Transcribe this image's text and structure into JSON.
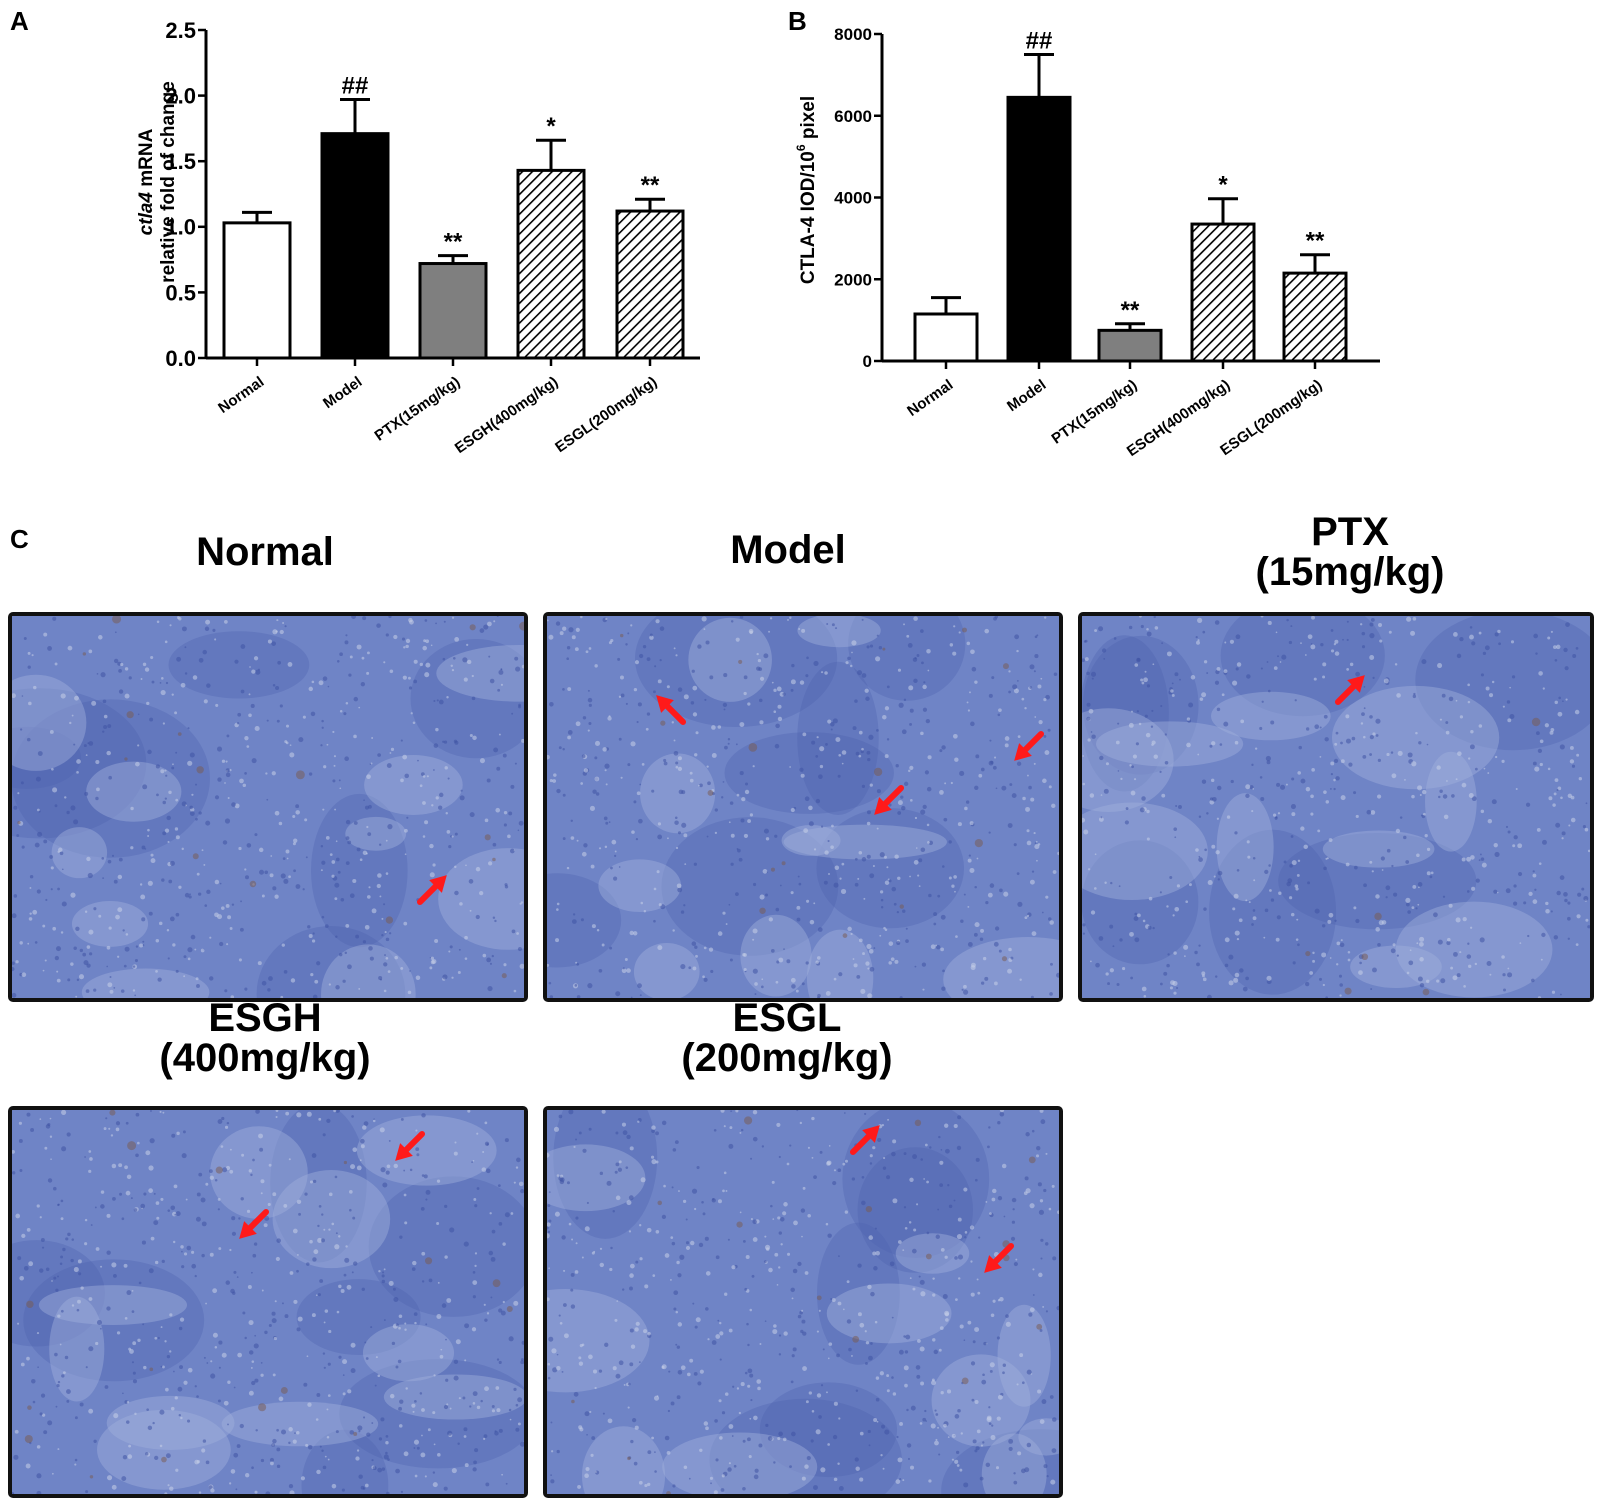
{
  "panels": {
    "a": {
      "letter": "A"
    },
    "b": {
      "letter": "B"
    },
    "c": {
      "letter": "C"
    }
  },
  "chart_data": [
    {
      "id": "A",
      "type": "bar",
      "categories": [
        "Normal",
        "Model",
        "PTX(15mg/kg)",
        "ESGH(400mg/kg)",
        "ESGL(200mg/kg)"
      ],
      "values": [
        1.03,
        1.71,
        0.72,
        1.43,
        1.12
      ],
      "errors": [
        0.08,
        0.26,
        0.06,
        0.23,
        0.09
      ],
      "significance": [
        "",
        "##",
        "**",
        "*",
        "**"
      ],
      "fills": [
        "white",
        "black",
        "gray",
        "hatch",
        "hatch"
      ],
      "ylabel_italic": "ctla4",
      "ylabel_rest": " mRNA",
      "ylabel_line2": "relative fold of change",
      "ylim": [
        0,
        2.5
      ],
      "yticks": [
        "0.0",
        "0.5",
        "1.0",
        "1.5",
        "2.0",
        "2.5"
      ],
      "ytick_values": [
        0,
        0.5,
        1.0,
        1.5,
        2.0,
        2.5
      ]
    },
    {
      "id": "B",
      "type": "bar",
      "categories": [
        "Normal",
        "Model",
        "PTX(15mg/kg)",
        "ESGH(400mg/kg)",
        "ESGL(200mg/kg)"
      ],
      "values": [
        1150,
        6450,
        750,
        3350,
        2150
      ],
      "errors": [
        400,
        1050,
        160,
        620,
        450
      ],
      "significance": [
        "",
        "##",
        "**",
        "*",
        "**"
      ],
      "fills": [
        "white",
        "black",
        "gray",
        "hatch",
        "hatch"
      ],
      "ylabel_main": "CTLA-4 IOD/10",
      "ylabel_sup": "6",
      "ylabel_tail": " pixel",
      "ylim": [
        0,
        8000
      ],
      "yticks": [
        "0",
        "2000",
        "4000",
        "6000",
        "8000"
      ],
      "ytick_values": [
        0,
        2000,
        4000,
        6000,
        8000
      ]
    }
  ],
  "micrographs": [
    {
      "title_lines": [
        "Normal"
      ],
      "arrows": [
        {
          "direction": "up-right"
        }
      ]
    },
    {
      "title_lines": [
        "Model"
      ],
      "arrows": [
        {
          "direction": "up-left"
        },
        {
          "direction": "down-left"
        },
        {
          "direction": "down-left"
        }
      ]
    },
    {
      "title_lines": [
        "PTX",
        "(15mg/kg)"
      ],
      "arrows": [
        {
          "direction": "up-right"
        }
      ]
    },
    {
      "title_lines": [
        "ESGH",
        "(400mg/kg)"
      ],
      "arrows": [
        {
          "direction": "down-left"
        },
        {
          "direction": "down-left"
        }
      ]
    },
    {
      "title_lines": [
        "ESGL",
        "(200mg/kg)"
      ],
      "arrows": [
        {
          "direction": "up-right"
        },
        {
          "direction": "down-left"
        }
      ]
    }
  ],
  "colors": {
    "stain_blue": "#6f84c6",
    "stain_light": "#9fb0db",
    "stain_dark": "#4d61b0",
    "brown_spot": "#7a5a4e",
    "arrow_red": "#ff1a1a",
    "bar_gray": "#7f7f7f"
  }
}
